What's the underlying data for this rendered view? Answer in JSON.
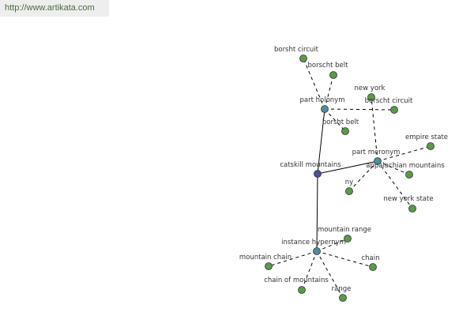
{
  "header": {
    "url": "http://www.artikata.com"
  },
  "nodes": [
    {
      "label": "catskill mountains"
    },
    {
      "label": "part holonym"
    },
    {
      "label": "part meronym"
    },
    {
      "label": "instance hypernym"
    },
    {
      "label": "borsht circuit"
    },
    {
      "label": "borscht belt"
    },
    {
      "label": "new york"
    },
    {
      "label": "borscht circuit"
    },
    {
      "label": "borsht belt"
    },
    {
      "label": "empire state"
    },
    {
      "label": "appalachian mountains"
    },
    {
      "label": "ny"
    },
    {
      "label": "new york state"
    },
    {
      "label": "mountain range"
    },
    {
      "label": "mountain chain"
    },
    {
      "label": "chain"
    },
    {
      "label": "chain of mountains"
    },
    {
      "label": "range"
    }
  ]
}
